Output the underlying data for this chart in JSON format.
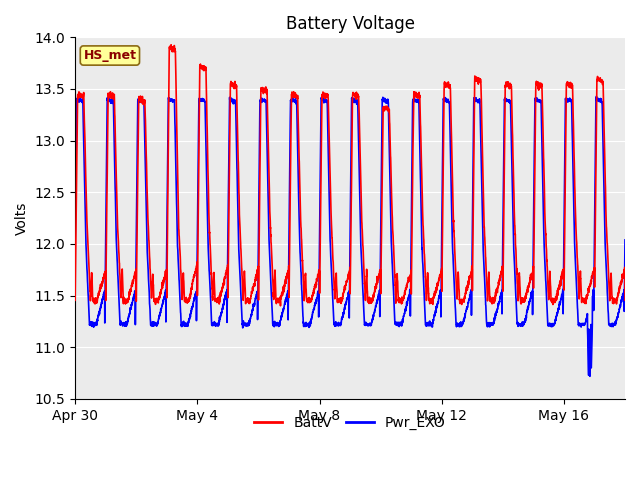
{
  "title": "Battery Voltage",
  "ylabel": "Volts",
  "xlabel": "",
  "ylim": [
    10.5,
    14.0
  ],
  "yticks": [
    10.5,
    11.0,
    11.5,
    12.0,
    12.5,
    13.0,
    13.5,
    14.0
  ],
  "xtick_labels": [
    "Apr 30",
    "May 4",
    "May 8",
    "May 12",
    "May 16"
  ],
  "xtick_positions": [
    0,
    4,
    8,
    12,
    16
  ],
  "legend_labels": [
    "BattV",
    "Pwr_EXO"
  ],
  "line_colors": [
    "red",
    "blue"
  ],
  "annotation_text": "HS_met",
  "background_color": "#ebebeb",
  "grid_color": "white",
  "title_fontsize": 12,
  "label_fontsize": 10,
  "num_days": 18,
  "points_per_day": 200,
  "batt_highs": [
    13.45,
    13.45,
    13.4,
    13.9,
    13.72,
    13.55,
    13.5,
    13.45,
    13.45,
    13.45,
    13.32,
    13.45,
    13.55,
    13.6,
    13.55,
    13.55,
    13.55,
    13.6
  ],
  "exo_high": 13.4,
  "batt_low": 11.45,
  "exo_low": 11.22,
  "exo_deep_drop_day": 16.85,
  "exo_deep_drop_val": 10.72,
  "figsize": [
    6.4,
    4.8
  ],
  "dpi": 100
}
